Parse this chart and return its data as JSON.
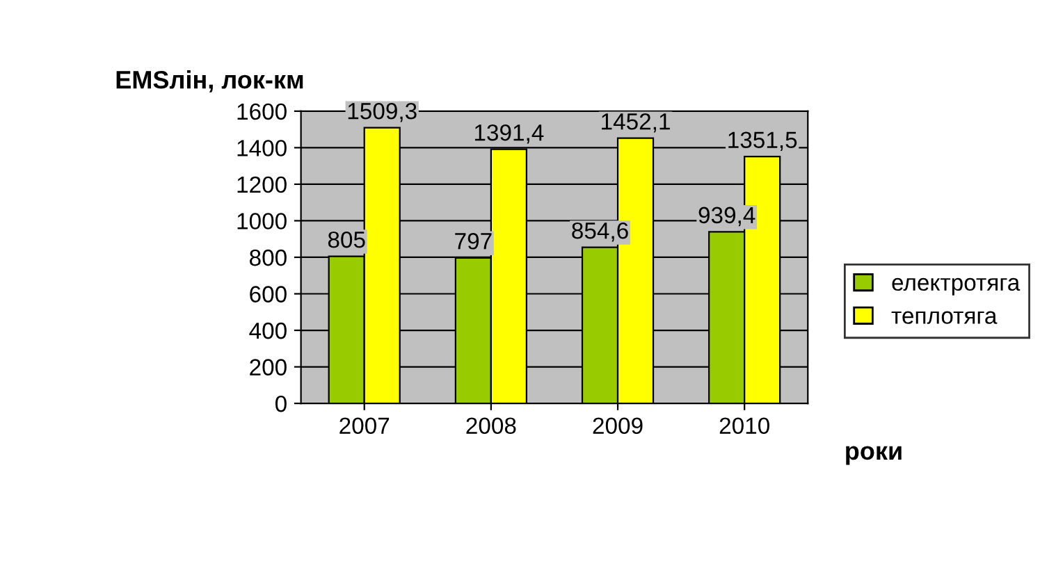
{
  "chart_data": {
    "type": "bar",
    "ylabel": "EMSлін, лок-км",
    "xlabel": "роки",
    "categories": [
      "2007",
      "2008",
      "2009",
      "2010"
    ],
    "series": [
      {
        "name": "електротяга",
        "color": "#99cc00",
        "values": [
          805,
          797,
          854.6,
          939.4
        ],
        "value_labels": [
          "805",
          "797",
          "854,6",
          "939,4"
        ]
      },
      {
        "name": "теплотяга",
        "color": "#ffff00",
        "values": [
          1509.3,
          1391.4,
          1452.1,
          1351.5
        ],
        "value_labels": [
          "1509,3",
          "1391,4",
          "1452,1",
          "1351,5"
        ]
      }
    ],
    "ylim": [
      0,
      1600
    ],
    "yticks": [
      0,
      200,
      400,
      600,
      800,
      1000,
      1200,
      1400,
      1600
    ],
    "grid": "y",
    "legend": "right"
  }
}
